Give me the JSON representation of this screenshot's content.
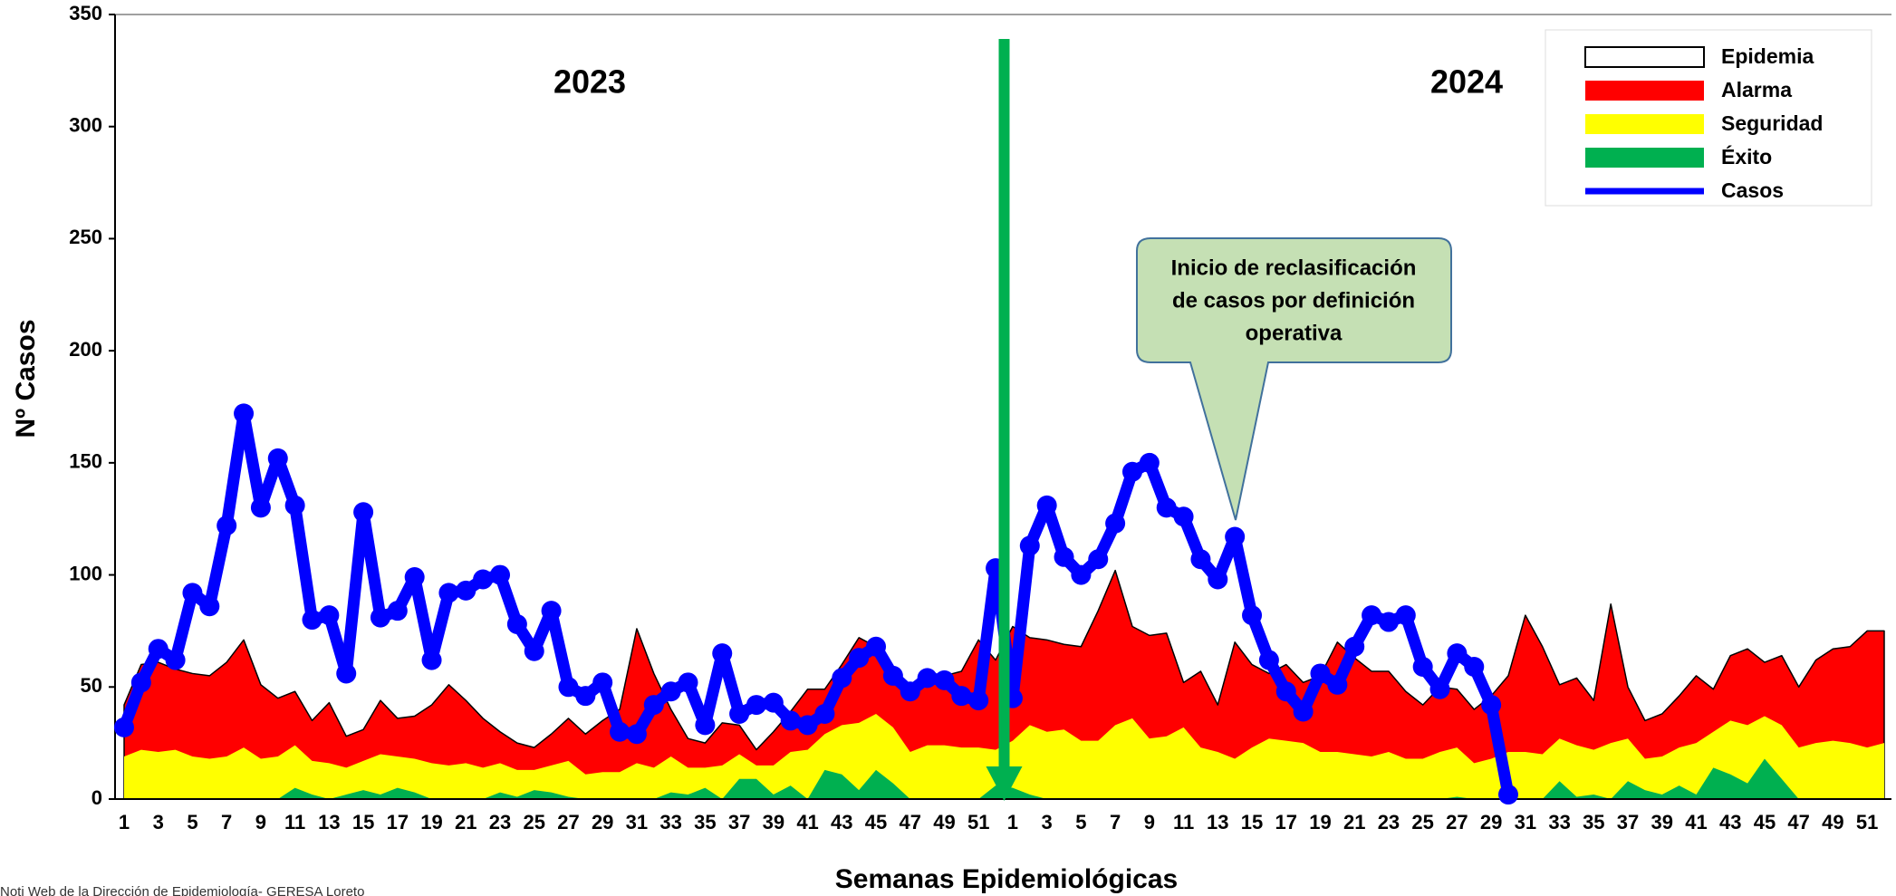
{
  "chart_data": {
    "type": "area",
    "y_label": "Nº Casos",
    "x_label": "Semanas Epidemiológicas",
    "annotations": [
      "2023",
      "2024"
    ],
    "callout": [
      "Inicio de reclasificación",
      "de casos por definición",
      "operativa"
    ],
    "source": "Noti Web de la Dirección de Epidemiología- GERESA Loreto",
    "categories": [
      "1",
      null,
      "3",
      null,
      "5",
      null,
      "7",
      null,
      "9",
      null,
      "11",
      null,
      "13",
      null,
      "15",
      null,
      "17",
      null,
      "19",
      null,
      "21",
      null,
      "23",
      null,
      "25",
      null,
      "27",
      null,
      "29",
      null,
      "31",
      null,
      "33",
      null,
      "35",
      null,
      "37",
      null,
      "39",
      null,
      "41",
      null,
      "43",
      null,
      "45",
      null,
      "47",
      null,
      "49",
      null,
      "51",
      null,
      "1",
      null,
      "3",
      null,
      "5",
      null,
      "7",
      null,
      "9",
      null,
      "11",
      null,
      "13",
      null,
      "15",
      null,
      "17",
      null,
      "19",
      null,
      "21",
      null,
      "23",
      null,
      "25",
      null,
      "27",
      null,
      "29",
      null,
      "31",
      null,
      "33",
      null,
      "35",
      null,
      "37",
      null,
      "39",
      null,
      "41",
      null,
      "43",
      null,
      "45",
      null,
      "47",
      null,
      "49",
      null,
      "51",
      null
    ],
    "ylim": [
      0,
      350
    ],
    "yticks": [
      0,
      50,
      100,
      150,
      200,
      250,
      300,
      350
    ],
    "grid": false,
    "legend": "upper right",
    "series": [
      {
        "name": "Epidemia",
        "color": "#ffffff",
        "edgecolor": "#000000"
      },
      {
        "name": "Alarma",
        "color": "#ff0000",
        "edgecolor": "#000000",
        "values": [
          42,
          60,
          61,
          58,
          56,
          55,
          61,
          71,
          51,
          45,
          48,
          35,
          43,
          28,
          31,
          44,
          36,
          37,
          42,
          51,
          44,
          36,
          30,
          25,
          23,
          29,
          36,
          29,
          35,
          40,
          76,
          56,
          40,
          27,
          25,
          34,
          33,
          22,
          30,
          39,
          49,
          49,
          60,
          72,
          68,
          59,
          48,
          55,
          55,
          57,
          71,
          62,
          77,
          72,
          71,
          69,
          68,
          84,
          102,
          77,
          73,
          74,
          52,
          57,
          42,
          70,
          60,
          56,
          60,
          52,
          55,
          70,
          63,
          57,
          57,
          48,
          42,
          50,
          49,
          40,
          46,
          55,
          82,
          68,
          51,
          54,
          44,
          87,
          50,
          35,
          38,
          46,
          55,
          49,
          64,
          67,
          61,
          64,
          50,
          62,
          67,
          68,
          75,
          75
        ]
      },
      {
        "name": "Seguridad",
        "color": "#ffff00",
        "values": [
          19,
          22,
          21,
          22,
          19,
          18,
          19,
          23,
          18,
          19,
          24,
          17,
          16,
          14,
          17,
          20,
          19,
          18,
          16,
          15,
          16,
          14,
          16,
          13,
          13,
          15,
          17,
          11,
          12,
          12,
          16,
          14,
          19,
          14,
          14,
          15,
          20,
          15,
          15,
          21,
          22,
          29,
          33,
          34,
          38,
          32,
          21,
          24,
          24,
          23,
          23,
          22,
          26,
          33,
          30,
          31,
          26,
          26,
          33,
          36,
          27,
          28,
          32,
          23,
          21,
          18,
          23,
          27,
          26,
          25,
          21,
          21,
          20,
          19,
          21,
          18,
          18,
          21,
          23,
          16,
          18,
          21,
          21,
          20,
          27,
          24,
          22,
          25,
          27,
          18,
          19,
          23,
          25,
          30,
          35,
          33,
          37,
          33,
          23,
          25,
          26,
          25,
          23,
          25
        ]
      },
      {
        "name": "Éxito",
        "color": "#00b050",
        "values": [
          0,
          0,
          0,
          0,
          0,
          0,
          0,
          0,
          0,
          0,
          5,
          2,
          0,
          2,
          4,
          2,
          5,
          3,
          0,
          0,
          0,
          0,
          3,
          1,
          4,
          3,
          1,
          0,
          0,
          0,
          0,
          0,
          3,
          2,
          5,
          0,
          9,
          9,
          2,
          6,
          0,
          13,
          11,
          4,
          13,
          7,
          0,
          0,
          0,
          0,
          0,
          6,
          5,
          2,
          0,
          0,
          0,
          0,
          0,
          0,
          0,
          0,
          0,
          0,
          0,
          0,
          0,
          0,
          0,
          0,
          0,
          0,
          0,
          0,
          0,
          0,
          0,
          0,
          1,
          0,
          0,
          0,
          0,
          0,
          8,
          1,
          2,
          0,
          8,
          4,
          2,
          6,
          2,
          14,
          11,
          7,
          18,
          9,
          0,
          0,
          0,
          0,
          0,
          0
        ]
      },
      {
        "name": "Casos",
        "color": "#0000ff",
        "type": "line",
        "values": [
          32,
          52,
          67,
          62,
          92,
          86,
          122,
          172,
          130,
          152,
          131,
          80,
          82,
          56,
          128,
          81,
          84,
          99,
          62,
          92,
          93,
          98,
          100,
          78,
          66,
          84,
          50,
          46,
          52,
          30,
          29,
          42,
          48,
          52,
          33,
          65,
          38,
          42,
          43,
          35,
          33,
          38,
          54,
          63,
          68,
          55,
          48,
          54,
          53,
          46,
          44,
          103,
          45,
          113,
          131,
          108,
          100,
          107,
          123,
          146,
          150,
          130,
          126,
          107,
          98,
          117,
          82,
          62,
          48,
          39,
          56,
          51,
          68,
          82,
          79,
          82,
          59,
          49,
          65,
          59,
          42,
          2,
          null,
          null,
          null,
          null,
          null,
          null,
          null,
          null,
          null,
          null,
          null,
          null,
          null,
          null,
          null,
          null,
          null,
          null,
          null,
          null,
          null,
          null
        ]
      }
    ]
  }
}
